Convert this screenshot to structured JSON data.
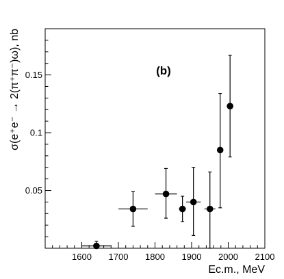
{
  "chart_data": {
    "type": "scatter",
    "xlabel": "Ec.m., MeV",
    "ylabel": "σ(e⁺e⁻ → 2(π⁺π⁻)ω), nb",
    "annotation": "(b)",
    "xlim": [
      1500,
      2100
    ],
    "ylim": [
      0,
      0.19
    ],
    "x_ticks": [
      1600,
      1700,
      1800,
      1900,
      2000,
      2100
    ],
    "x_tick_labels": [
      "1600",
      "1700",
      "1800",
      "1900",
      "2000",
      "2100"
    ],
    "y_ticks": [
      0.05,
      0.1,
      0.15
    ],
    "y_tick_labels": [
      "0.05",
      "0.1",
      "0.15"
    ],
    "grid": false,
    "legend": "none",
    "points": [
      {
        "x": 1640,
        "y": 0.002,
        "x_err": [
          40,
          40
        ],
        "y_err": [
          0.002,
          0.004
        ]
      },
      {
        "x": 1740,
        "y": 0.034,
        "x_err": [
          40,
          40
        ],
        "y_err": [
          0.015,
          0.015
        ]
      },
      {
        "x": 1830,
        "y": 0.047,
        "x_err": [
          30,
          30
        ],
        "y_err": [
          0.021,
          0.022
        ]
      },
      {
        "x": 1875,
        "y": 0.034,
        "x_err": [
          10,
          10
        ],
        "y_err": [
          0.011,
          0.011
        ]
      },
      {
        "x": 1905,
        "y": 0.04,
        "x_err": [
          20,
          20
        ],
        "y_err": [
          0.029,
          0.03
        ]
      },
      {
        "x": 1950,
        "y": 0.034,
        "x_err": [
          15,
          15
        ],
        "y_err": [
          0.034,
          0.032
        ]
      },
      {
        "x": 1978,
        "y": 0.085,
        "x_err": [
          8,
          8
        ],
        "y_err": [
          0.05,
          0.049
        ]
      },
      {
        "x": 2005,
        "y": 0.123,
        "x_err": [
          5,
          5
        ],
        "y_err": [
          0.044,
          0.044
        ]
      }
    ]
  }
}
